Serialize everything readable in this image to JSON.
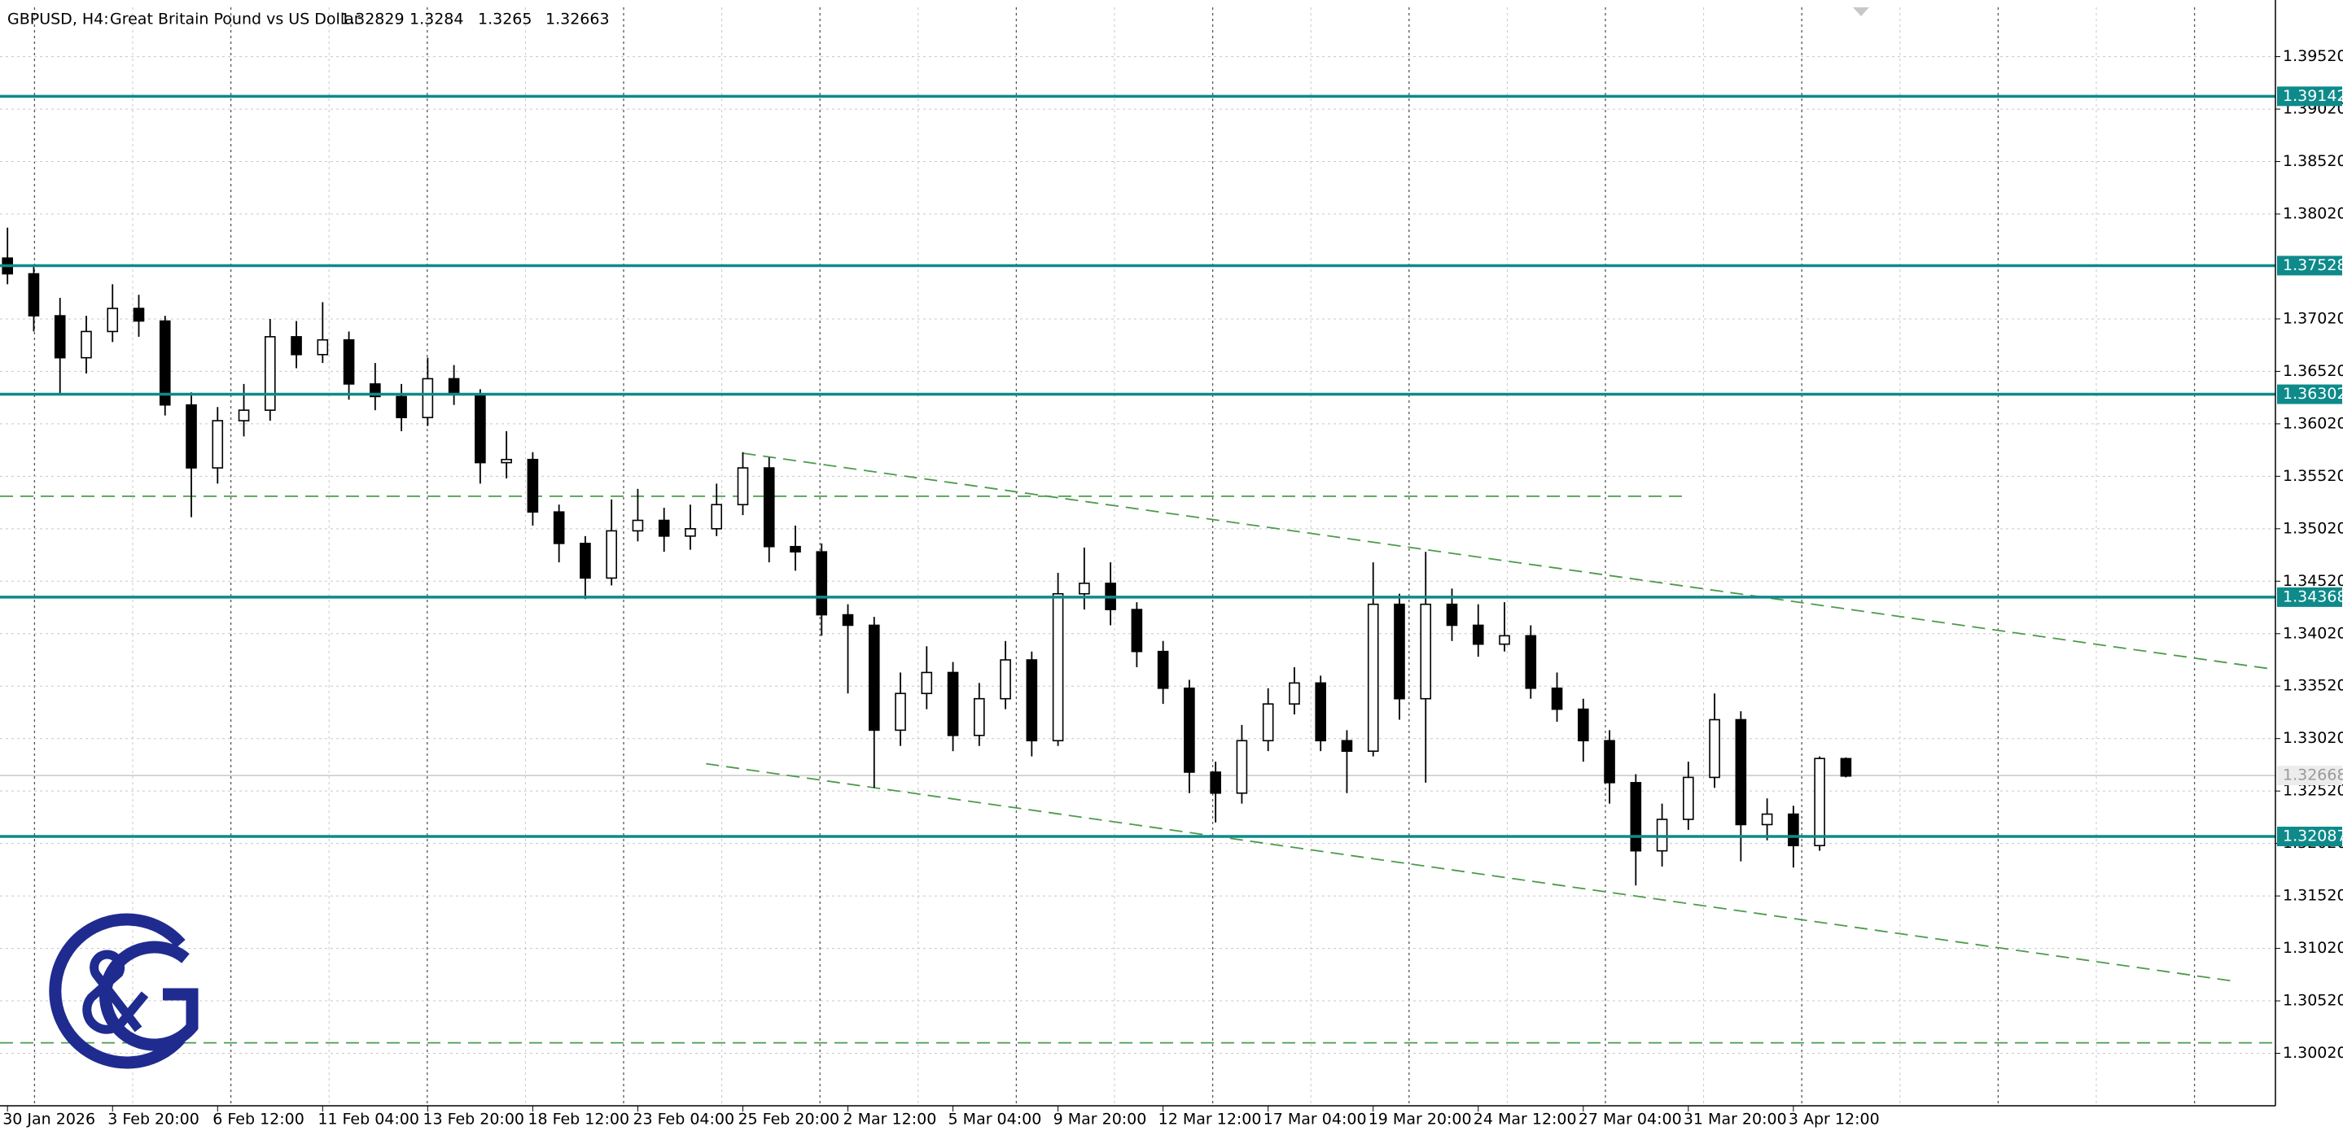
{
  "chart_data": {
    "type": "candlestick",
    "title": "GBPUSD, H4:",
    "subtitle": "Great Britain Pound vs US Dollar",
    "header_values": [
      1.32829,
      1.3284,
      1.3265,
      1.32663
    ],
    "categories": [
      "30 Jan 2026",
      null,
      null,
      null,
      "3 Feb 20:00",
      null,
      null,
      null,
      "6 Feb 12:00",
      null,
      null,
      null,
      "11 Feb 04:00",
      null,
      null,
      null,
      "13 Feb 20:00",
      null,
      null,
      null,
      "18 Feb 12:00",
      null,
      null,
      null,
      "23 Feb 04:00",
      null,
      null,
      null,
      "25 Feb 20:00",
      null,
      null,
      null,
      "2 Mar 12:00",
      null,
      null,
      null,
      "5 Mar 04:00",
      null,
      null,
      null,
      "9 Mar 20:00",
      null,
      null,
      null,
      "12 Mar 12:00",
      null,
      null,
      null,
      "17 Mar 04:00",
      null,
      null,
      null,
      "19 Mar 20:00",
      null,
      null,
      null,
      "24 Mar 12:00",
      null,
      null,
      null,
      "27 Mar 04:00",
      null,
      null,
      null,
      "31 Mar 20:00",
      null,
      null,
      null,
      "3 Apr 12:00",
      null,
      null
    ],
    "ohlc": [
      [
        1.376,
        1.3789,
        1.3735,
        1.3745
      ],
      [
        1.3745,
        1.3752,
        1.369,
        1.3705
      ],
      [
        1.3705,
        1.3722,
        1.363,
        1.3665
      ],
      [
        1.3665,
        1.3705,
        1.365,
        1.369
      ],
      [
        1.369,
        1.3735,
        1.368,
        1.3712
      ],
      [
        1.3712,
        1.3725,
        1.3685,
        1.37
      ],
      [
        1.37,
        1.3705,
        1.361,
        1.362
      ],
      [
        1.362,
        1.3632,
        1.3513,
        1.356
      ],
      [
        1.356,
        1.3618,
        1.3545,
        1.3605
      ],
      [
        1.3605,
        1.364,
        1.359,
        1.3615
      ],
      [
        1.3615,
        1.3702,
        1.3605,
        1.3685
      ],
      [
        1.3685,
        1.37,
        1.3655,
        1.3668
      ],
      [
        1.3668,
        1.3718,
        1.366,
        1.3682
      ],
      [
        1.3682,
        1.369,
        1.3625,
        1.364
      ],
      [
        1.364,
        1.366,
        1.3615,
        1.3628
      ],
      [
        1.3628,
        1.364,
        1.3595,
        1.3608
      ],
      [
        1.3608,
        1.3665,
        1.36,
        1.3645
      ],
      [
        1.3645,
        1.3658,
        1.362,
        1.363
      ],
      [
        1.363,
        1.3635,
        1.3545,
        1.3565
      ],
      [
        1.3565,
        1.3595,
        1.355,
        1.3568
      ],
      [
        1.3568,
        1.3575,
        1.3505,
        1.3518
      ],
      [
        1.3518,
        1.3525,
        1.347,
        1.3488
      ],
      [
        1.3488,
        1.3495,
        1.3435,
        1.3455
      ],
      [
        1.3455,
        1.353,
        1.3448,
        1.35
      ],
      [
        1.35,
        1.354,
        1.349,
        1.351
      ],
      [
        1.351,
        1.3522,
        1.348,
        1.3495
      ],
      [
        1.3495,
        1.3525,
        1.3482,
        1.3502
      ],
      [
        1.3502,
        1.3545,
        1.3495,
        1.3525
      ],
      [
        1.3525,
        1.3575,
        1.3515,
        1.356
      ],
      [
        1.356,
        1.357,
        1.347,
        1.3485
      ],
      [
        1.3485,
        1.3505,
        1.3462,
        1.348
      ],
      [
        1.348,
        1.3488,
        1.34,
        1.342
      ],
      [
        1.342,
        1.343,
        1.3345,
        1.341
      ],
      [
        1.341,
        1.3418,
        1.3255,
        1.331
      ],
      [
        1.331,
        1.3365,
        1.3295,
        1.3345
      ],
      [
        1.3345,
        1.339,
        1.333,
        1.3365
      ],
      [
        1.3365,
        1.3375,
        1.329,
        1.3305
      ],
      [
        1.3305,
        1.3355,
        1.3295,
        1.334
      ],
      [
        1.334,
        1.3395,
        1.333,
        1.3377
      ],
      [
        1.3377,
        1.3385,
        1.3285,
        1.33
      ],
      [
        1.33,
        1.346,
        1.3295,
        1.344
      ],
      [
        1.344,
        1.3484,
        1.3425,
        1.345
      ],
      [
        1.345,
        1.347,
        1.341,
        1.3425
      ],
      [
        1.3425,
        1.3432,
        1.337,
        1.3385
      ],
      [
        1.3385,
        1.3395,
        1.3335,
        1.335
      ],
      [
        1.335,
        1.3358,
        1.325,
        1.327
      ],
      [
        1.327,
        1.328,
        1.3222,
        1.325
      ],
      [
        1.325,
        1.3315,
        1.324,
        1.33
      ],
      [
        1.33,
        1.335,
        1.329,
        1.3335
      ],
      [
        1.3335,
        1.337,
        1.3325,
        1.3355
      ],
      [
        1.3355,
        1.3362,
        1.329,
        1.33
      ],
      [
        1.33,
        1.331,
        1.325,
        1.329
      ],
      [
        1.329,
        1.347,
        1.3285,
        1.343
      ],
      [
        1.343,
        1.344,
        1.332,
        1.334
      ],
      [
        1.334,
        1.348,
        1.326,
        1.343
      ],
      [
        1.343,
        1.3445,
        1.3395,
        1.341
      ],
      [
        1.341,
        1.343,
        1.338,
        1.3392
      ],
      [
        1.3392,
        1.3432,
        1.3385,
        1.34
      ],
      [
        1.34,
        1.341,
        1.334,
        1.335
      ],
      [
        1.335,
        1.3365,
        1.3318,
        1.333
      ],
      [
        1.333,
        1.334,
        1.328,
        1.33
      ],
      [
        1.33,
        1.331,
        1.324,
        1.326
      ],
      [
        1.326,
        1.3268,
        1.3162,
        1.3195
      ],
      [
        1.3195,
        1.324,
        1.318,
        1.3225
      ],
      [
        1.3225,
        1.328,
        1.3215,
        1.3265
      ],
      [
        1.3265,
        1.3345,
        1.3255,
        1.332
      ],
      [
        1.332,
        1.3328,
        1.3185,
        1.322
      ],
      [
        1.322,
        1.3245,
        1.3205,
        1.323
      ],
      [
        1.323,
        1.3238,
        1.3179,
        1.32
      ],
      [
        1.32,
        1.3285,
        1.3195,
        1.3283
      ],
      [
        1.32829,
        1.3284,
        1.3265,
        1.32663
      ]
    ],
    "up_color": "#ffffff",
    "down_color": "#000000",
    "ylim": [
      1.2952,
      1.3999
    ],
    "yticks": [
      {
        "value": 1.3952,
        "label": "1.39520"
      },
      {
        "value": 1.3902,
        "label": "1.39020"
      },
      {
        "value": 1.3852,
        "label": "1.38520"
      },
      {
        "value": 1.3802,
        "label": "1.38020"
      },
      {
        "value": 1.3702,
        "label": "1.37020"
      },
      {
        "value": 1.3652,
        "label": "1.36520"
      },
      {
        "value": 1.3602,
        "label": "1.36020"
      },
      {
        "value": 1.3552,
        "label": "1.35520"
      },
      {
        "value": 1.3502,
        "label": "1.35020"
      },
      {
        "value": 1.3452,
        "label": "1.34520"
      },
      {
        "value": 1.3402,
        "label": "1.34020"
      },
      {
        "value": 1.3352,
        "label": "1.33520"
      },
      {
        "value": 1.3302,
        "label": "1.33020"
      },
      {
        "value": 1.3252,
        "label": "1.32520"
      },
      {
        "value": 1.3202,
        "label": "1.32020"
      },
      {
        "value": 1.3152,
        "label": "1.31520"
      },
      {
        "value": 1.3102,
        "label": "1.31020"
      },
      {
        "value": 1.3052,
        "label": "1.30520"
      },
      {
        "value": 1.3002,
        "label": "1.30020"
      }
    ],
    "grid": true,
    "levels": [
      1.39142,
      1.37528,
      1.36302,
      1.34368,
      1.32087
    ],
    "level_color": "#0e8a8a",
    "current_price": 1.32668,
    "hlines": [
      {
        "price": 1.3533,
        "x2": 64
      },
      {
        "price": 1.3012
      }
    ],
    "trendlines": [
      {
        "x": [
          28,
          86.3
        ],
        "y": [
          1.3574,
          1.3368
        ]
      },
      {
        "x": [
          26.6,
          84.7
        ],
        "y": [
          1.3278,
          1.3071
        ]
      }
    ],
    "line_color": "#4c9a4c"
  }
}
